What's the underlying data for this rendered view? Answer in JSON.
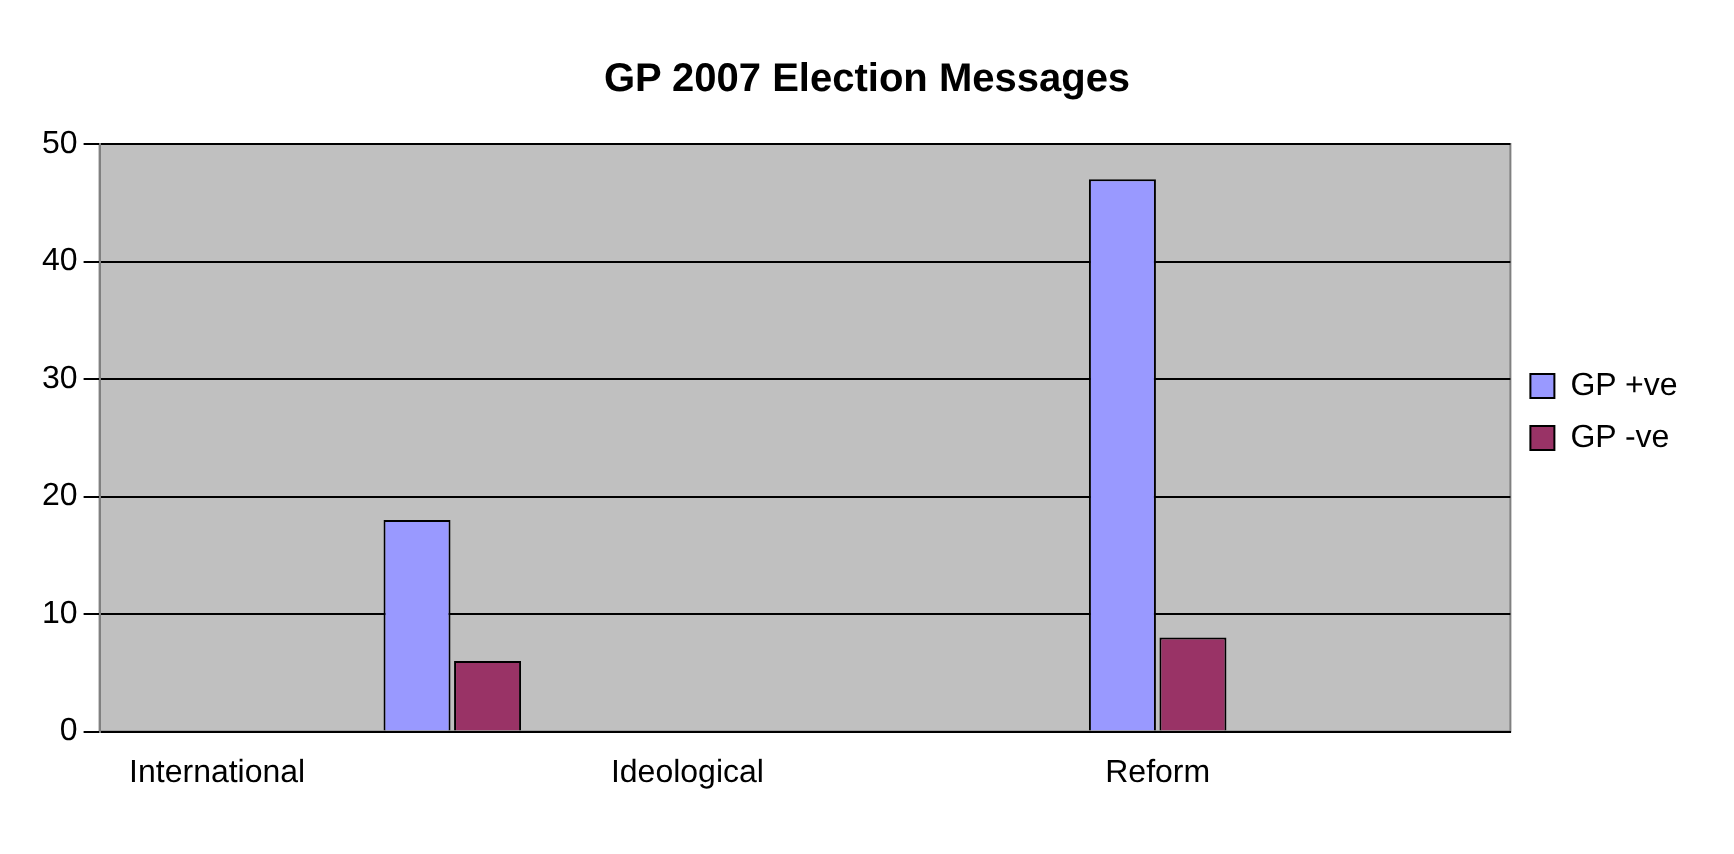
{
  "chart_data": {
    "type": "bar",
    "title": "GP 2007 Election Messages",
    "categories": [
      "International",
      null,
      "Ideological",
      null,
      "Reform",
      null
    ],
    "series": [
      {
        "name": "GP +ve",
        "color": "#9999ff",
        "values": [
          0,
          18,
          0,
          0,
          47,
          0
        ]
      },
      {
        "name": "GP -ve",
        "color": "#993366",
        "values": [
          0,
          6,
          0,
          0,
          8,
          0
        ]
      }
    ],
    "ylim": [
      0,
      50
    ],
    "yticks": [
      0,
      10,
      20,
      30,
      40,
      50
    ],
    "grid": "y",
    "legend": "right"
  }
}
